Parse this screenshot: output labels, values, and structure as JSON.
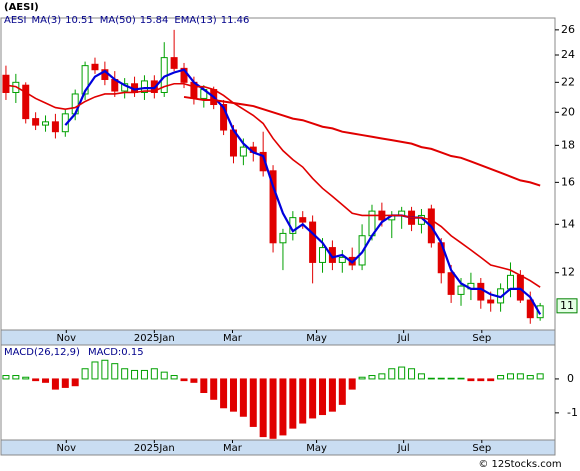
{
  "chart_data": {
    "type": "candlestick",
    "title": "(AESI)",
    "symbol": "AESI",
    "log": true,
    "x": [
      0,
      1,
      2,
      3,
      4,
      5,
      6,
      7,
      8,
      9,
      10,
      11,
      12,
      13,
      14,
      15,
      16,
      17,
      18,
      19,
      20,
      21,
      22,
      23,
      24,
      25,
      26,
      27,
      28,
      29,
      30,
      31,
      32,
      33,
      34,
      35,
      36,
      37,
      38,
      39,
      40,
      41,
      42,
      43,
      44,
      45,
      46,
      47,
      48,
      49,
      50,
      51,
      52,
      53,
      54
    ],
    "xlim": [
      -0.5,
      55.5
    ],
    "xticks": [
      {
        "value": 6.1,
        "label": "Nov"
      },
      {
        "value": 15,
        "label": "2025Jan"
      },
      {
        "value": 22.9,
        "label": "Mar"
      },
      {
        "value": 31.4,
        "label": "May"
      },
      {
        "value": 40.2,
        "label": "Jul"
      },
      {
        "value": 48.1,
        "label": "Sep"
      }
    ],
    "ylim": [
      10,
      27
    ],
    "yticks": [
      12,
      14,
      16,
      18,
      20,
      22,
      24,
      26
    ],
    "up_color": "#00a000",
    "down_color": "#e00000",
    "open": [
      22.5,
      21.3,
      21.8,
      19.6,
      19.2,
      19.4,
      18.8,
      19.9,
      21.2,
      23.3,
      22.9,
      22.2,
      21.4,
      21.9,
      21.3,
      22.1,
      21.3,
      23.8,
      23.0,
      22.0,
      20.9,
      21.5,
      20.5,
      18.9,
      17.4,
      17.9,
      17.6,
      16.6,
      13.2,
      13.6,
      14.3,
      14.1,
      12.4,
      13.0,
      12.4,
      12.6,
      12.3,
      13.5,
      14.6,
      14.2,
      14.4,
      14.6,
      14.0,
      14.7,
      13.2,
      12.0,
      11.2,
      11.4,
      11.6,
      11.0,
      10.9,
      11.4,
      11.9,
      11.0,
      10.4
    ],
    "high": [
      23.2,
      22.6,
      22.0,
      20.0,
      19.8,
      19.9,
      20.2,
      21.5,
      23.5,
      23.8,
      23.5,
      22.8,
      22.3,
      22.4,
      22.5,
      22.5,
      25.0,
      26.0,
      23.4,
      22.4,
      21.8,
      21.7,
      20.8,
      19.2,
      18.4,
      18.2,
      18.8,
      16.9,
      13.8,
      14.6,
      14.6,
      14.4,
      13.4,
      13.3,
      12.9,
      13.0,
      14.0,
      14.9,
      15.0,
      14.6,
      14.8,
      14.8,
      14.7,
      14.9,
      13.4,
      12.3,
      11.8,
      12.0,
      11.8,
      11.3,
      11.6,
      12.4,
      12.1,
      11.3,
      10.9
    ],
    "low": [
      20.8,
      20.6,
      19.3,
      18.9,
      18.8,
      18.4,
      18.5,
      19.5,
      20.8,
      22.6,
      21.8,
      21.0,
      20.9,
      21.0,
      20.8,
      20.9,
      21.0,
      22.8,
      21.6,
      20.5,
      20.3,
      20.2,
      18.6,
      17.0,
      16.9,
      17.1,
      16.3,
      12.8,
      12.1,
      13.3,
      13.8,
      11.6,
      12.0,
      12.1,
      12.0,
      12.1,
      12.1,
      13.3,
      13.9,
      13.4,
      13.8,
      13.7,
      13.6,
      13.0,
      11.6,
      10.9,
      10.8,
      11.0,
      10.7,
      10.6,
      10.6,
      11.1,
      10.9,
      10.2,
      10.3
    ],
    "close": [
      21.3,
      22.0,
      19.6,
      19.2,
      19.4,
      18.8,
      19.9,
      21.2,
      23.2,
      22.9,
      22.2,
      21.4,
      21.9,
      21.3,
      22.1,
      21.3,
      23.8,
      23.0,
      22.0,
      20.9,
      21.5,
      20.5,
      18.9,
      17.4,
      17.9,
      17.6,
      16.6,
      13.2,
      13.6,
      14.3,
      14.1,
      12.4,
      13.0,
      12.4,
      12.6,
      12.3,
      13.5,
      14.6,
      14.2,
      14.4,
      14.6,
      14.0,
      14.4,
      13.2,
      12.0,
      11.2,
      11.5,
      11.6,
      11.0,
      10.9,
      11.4,
      11.9,
      11.0,
      10.4,
      10.8
    ],
    "last_price_label": "11",
    "series": [
      {
        "name": "MA(3)",
        "last": 10.51,
        "color": "#0000dd",
        "width": 2.2,
        "values": [
          null,
          null,
          null,
          null,
          null,
          null,
          19.2,
          19.9,
          21.4,
          22.4,
          22.8,
          22.2,
          21.8,
          21.5,
          21.6,
          21.6,
          22.4,
          22.7,
          22.9,
          22.0,
          21.5,
          21.0,
          20.3,
          18.9,
          18.1,
          17.6,
          17.4,
          15.8,
          14.5,
          13.7,
          14.0,
          13.6,
          13.2,
          12.6,
          12.7,
          12.4,
          12.8,
          13.5,
          14.1,
          14.4,
          14.4,
          14.3,
          14.3,
          13.9,
          13.2,
          12.1,
          11.6,
          11.4,
          11.4,
          11.2,
          11.1,
          11.4,
          11.4,
          11.1,
          10.51
        ]
      },
      {
        "name": "MA(50)",
        "last": 15.84,
        "color": "#e00000",
        "width": 2,
        "values": [
          null,
          null,
          null,
          null,
          null,
          null,
          null,
          null,
          null,
          null,
          null,
          null,
          null,
          null,
          null,
          null,
          null,
          null,
          21.0,
          20.9,
          20.8,
          20.8,
          20.7,
          20.6,
          20.5,
          20.4,
          20.2,
          20.0,
          19.8,
          19.6,
          19.5,
          19.3,
          19.1,
          19.0,
          18.8,
          18.7,
          18.6,
          18.5,
          18.4,
          18.3,
          18.2,
          18.1,
          17.9,
          17.8,
          17.6,
          17.4,
          17.3,
          17.1,
          16.9,
          16.7,
          16.5,
          16.3,
          16.1,
          16.0,
          15.84
        ]
      },
      {
        "name": "EMA(13)",
        "last": 11.46,
        "color": "#e00000",
        "width": 1.6,
        "values": [
          21.8,
          21.7,
          21.3,
          20.9,
          20.6,
          20.3,
          20.2,
          20.3,
          20.7,
          21.0,
          21.2,
          21.2,
          21.3,
          21.3,
          21.4,
          21.4,
          21.7,
          21.9,
          21.9,
          21.7,
          21.7,
          21.5,
          21.1,
          20.6,
          20.2,
          19.8,
          19.3,
          18.4,
          17.7,
          17.2,
          16.8,
          16.2,
          15.7,
          15.3,
          14.9,
          14.5,
          14.4,
          14.4,
          14.4,
          14.4,
          14.4,
          14.3,
          14.3,
          14.2,
          13.9,
          13.5,
          13.2,
          12.9,
          12.6,
          12.3,
          12.2,
          12.1,
          11.9,
          11.7,
          11.46
        ]
      }
    ],
    "macd": {
      "title": "MACD(26,12,9)",
      "value_text": "MACD:0.15",
      "ylim": [
        -1.8,
        1.0
      ],
      "yticks": [
        0,
        -1
      ],
      "values": [
        0.1,
        0.1,
        0.05,
        -0.05,
        -0.1,
        -0.3,
        -0.25,
        -0.2,
        0.3,
        0.5,
        0.55,
        0.45,
        0.3,
        0.25,
        0.25,
        0.3,
        0.2,
        0.1,
        -0.05,
        -0.1,
        -0.4,
        -0.6,
        -0.85,
        -0.95,
        -1.1,
        -1.4,
        -1.7,
        -1.75,
        -1.65,
        -1.45,
        -1.3,
        -1.15,
        -1.05,
        -0.95,
        -0.75,
        -0.3,
        0.05,
        0.1,
        0.15,
        0.3,
        0.35,
        0.3,
        0.15,
        0.02,
        0.02,
        0.02,
        0.02,
        -0.05,
        -0.05,
        -0.05,
        0.1,
        0.15,
        0.15,
        0.1,
        0.15
      ]
    },
    "watermark": "© 12Stocks.com"
  }
}
